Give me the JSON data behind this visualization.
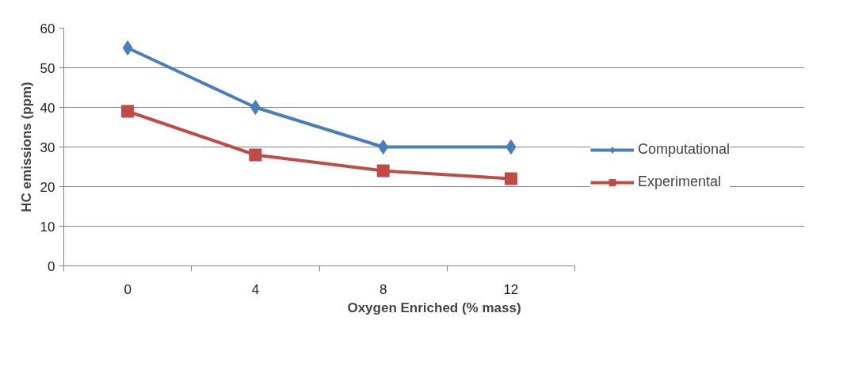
{
  "chart_data": {
    "type": "line",
    "xlabel": "Oxygen Enriched (% mass)",
    "ylabel": "HC emissions (ppm)",
    "categories": [
      "0",
      "4",
      "8",
      "12"
    ],
    "series": [
      {
        "name": "Computational",
        "color": "#4a7ebb",
        "values": [
          55,
          40,
          30,
          30
        ],
        "marker": "diamond"
      },
      {
        "name": "Experimental",
        "color": "#be4b48",
        "values": [
          39,
          28,
          24,
          22
        ],
        "marker": "square"
      }
    ],
    "ylim": [
      0,
      60
    ],
    "yticks": [
      0,
      10,
      20,
      30,
      40,
      50,
      60
    ],
    "grid": "y",
    "legend": "right",
    "line_style": "solid"
  }
}
